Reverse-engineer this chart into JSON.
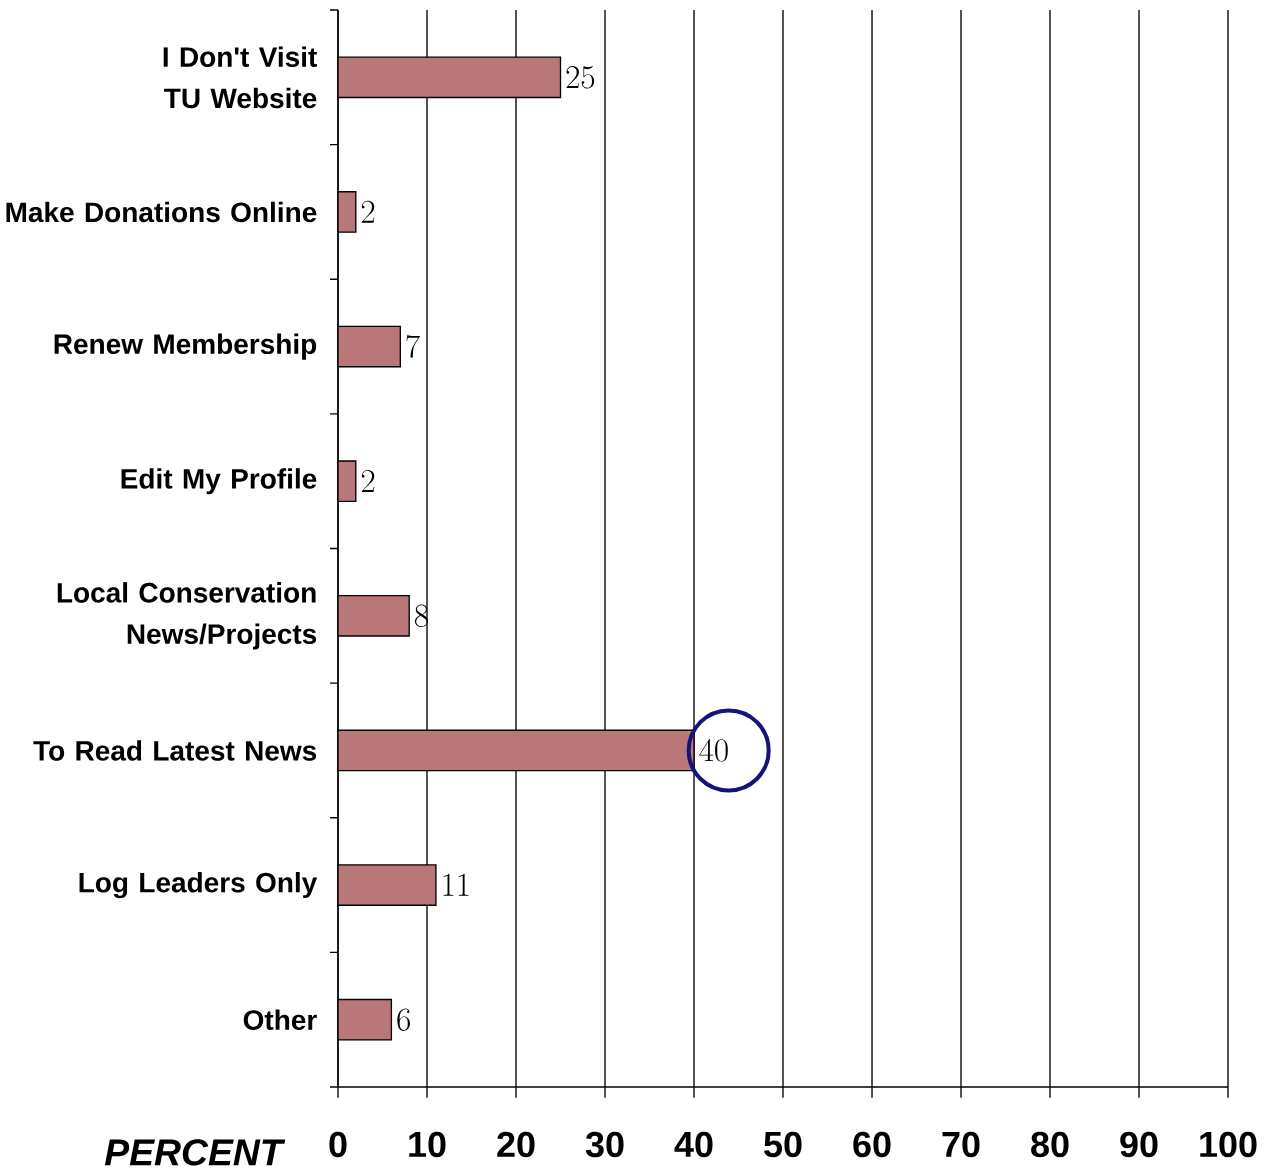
{
  "chart_data": {
    "type": "bar",
    "orientation": "horizontal",
    "categories": [
      "I Don't Visit TU Website",
      "Make Donations Online",
      "Renew Membership",
      "Edit My Profile",
      "Local Conservation News/Projects",
      "To Read Latest News",
      "Log Leaders Only",
      "Other"
    ],
    "values": [
      25,
      2,
      7,
      2,
      8,
      40,
      11,
      6
    ],
    "color": "#b9777a",
    "xlabel": "PERCENT",
    "xlim": [
      0,
      100
    ],
    "xticks": [
      0,
      10,
      20,
      30,
      40,
      50,
      60,
      70,
      80,
      90,
      100
    ],
    "grid": "x",
    "data_labels": true
  }
}
